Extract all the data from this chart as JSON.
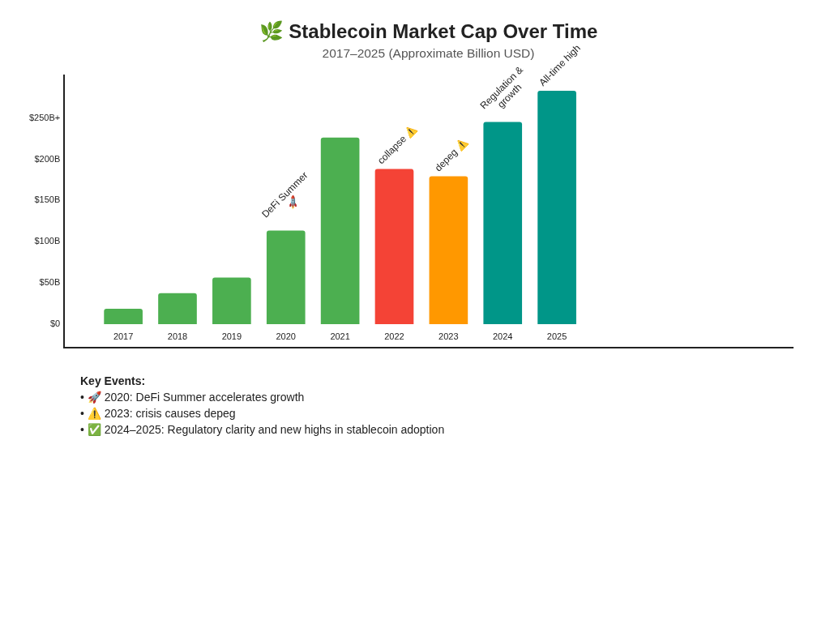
{
  "chart_data": {
    "type": "bar",
    "title": "🌿 Stablecoin Market Cap Over Time",
    "subtitle": "2017–2025 (Approximate Billion USD)",
    "categories": [
      "2017",
      "2018",
      "2019",
      "2020",
      "2021",
      "2022",
      "2023",
      "2024",
      "2025"
    ],
    "values": [
      18,
      37,
      56,
      113,
      226,
      188,
      179,
      245,
      283
    ],
    "colors": [
      "#4caf50",
      "#4caf50",
      "#4caf50",
      "#4caf50",
      "#4caf50",
      "#f44336",
      "#ff9800",
      "#009688",
      "#009688"
    ],
    "ylim": [
      -29,
      302
    ],
    "yticks": [
      {
        "value": 0,
        "label": "$0"
      },
      {
        "value": 50,
        "label": "$50B"
      },
      {
        "value": 100,
        "label": "$100B"
      },
      {
        "value": 150,
        "label": "$150B"
      },
      {
        "value": 200,
        "label": "$200B"
      },
      {
        "value": 250,
        "label": "$250B+"
      }
    ],
    "grid": false,
    "legend": false,
    "annotations": [
      {
        "text": "DeFi Summer 🚀",
        "x": "2020",
        "y": 113
      },
      {
        "text": "collapse ⚠️",
        "x": "2022",
        "y": 188
      },
      {
        "text": "depeg ⚠️",
        "x": "2023",
        "y": 179
      },
      {
        "text": "Regulation & growth",
        "x": "2024",
        "y": 245
      },
      {
        "text": "All-time high",
        "x": "2025",
        "y": 283
      },
      "Key Events:",
      "• 🚀 2020: DeFi Summer accelerates growth",
      "• ⚠️ 2023: crisis causes depeg",
      "• ✅ 2024–2025: Regulatory clarity and new highs in stablecoin adoption"
    ]
  }
}
